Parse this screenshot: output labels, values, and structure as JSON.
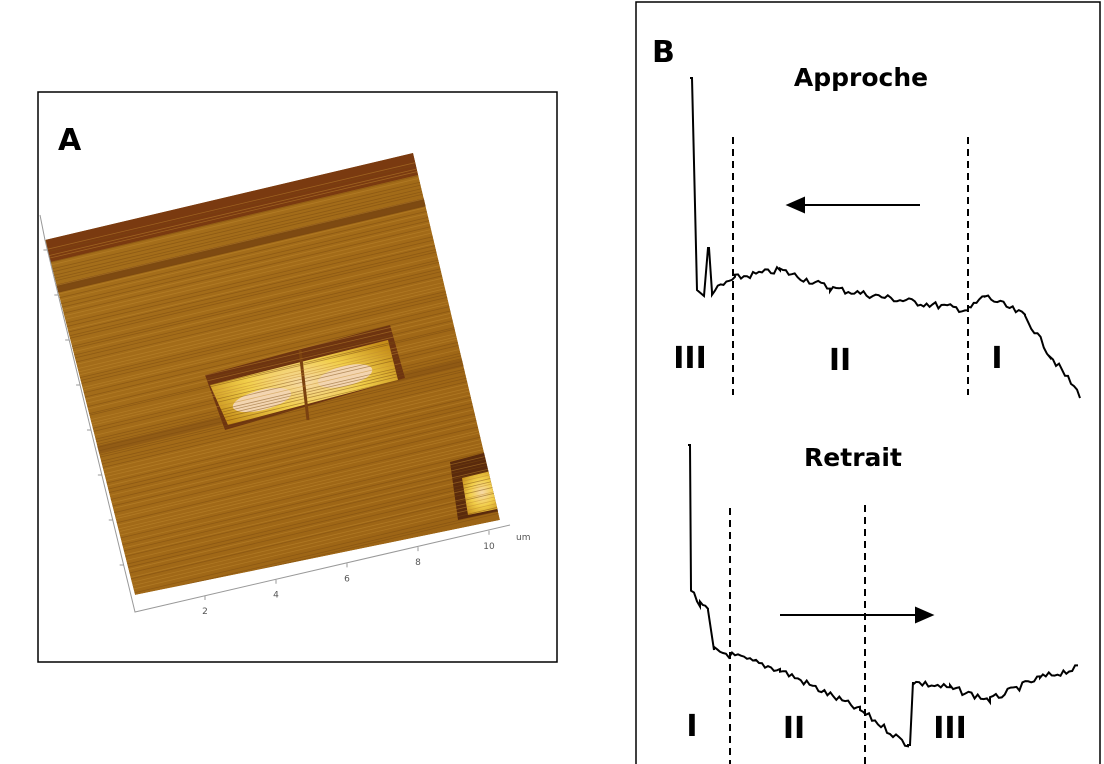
{
  "panel_a": {
    "label": "A",
    "axis_ticks": [
      "2",
      "4",
      "6",
      "8",
      "10"
    ],
    "axis_unit": "um"
  },
  "panel_b": {
    "label": "B",
    "approach": {
      "title": "Approche",
      "regions": [
        "III",
        "II",
        "I"
      ]
    },
    "retract": {
      "title": "Retrait",
      "regions": [
        "I",
        "II",
        "III"
      ]
    }
  }
}
